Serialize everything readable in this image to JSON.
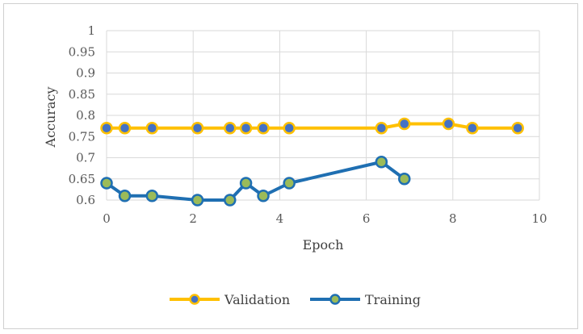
{
  "chart_data": {
    "type": "scatter",
    "xlabel": "Epoch",
    "ylabel": "Accuracy",
    "xlim": [
      0,
      10
    ],
    "ylim": [
      0.6,
      1
    ],
    "x_ticks": [
      0,
      2,
      4,
      6,
      8,
      10
    ],
    "x_tick_labels": [
      "0",
      "2",
      "4",
      "6",
      "8",
      "10"
    ],
    "y_ticks": [
      0.6,
      0.65,
      0.7,
      0.75,
      0.8,
      0.85,
      0.9,
      0.95,
      1
    ],
    "y_tick_labels": [
      "0.6",
      "0.65",
      "0.7",
      "0.75",
      "0.8",
      "0.85",
      "0.9",
      "0.95",
      "1"
    ],
    "grid": true,
    "legend_position": "bottom",
    "series": [
      {
        "name": "Validation",
        "color": "#FFC000",
        "marker_color": "#4472C4",
        "x": [
          0,
          0.42,
          1.05,
          2.1,
          2.85,
          3.22,
          3.62,
          4.22,
          6.35,
          6.88,
          7.9,
          8.45,
          9.5
        ],
        "y": [
          0.77,
          0.77,
          0.77,
          0.77,
          0.77,
          0.77,
          0.77,
          0.77,
          0.77,
          0.78,
          0.78,
          0.77,
          0.77
        ]
      },
      {
        "name": "Training",
        "color": "#1F6FB2",
        "marker_color": "#9BBB59",
        "x": [
          0,
          0.42,
          1.05,
          2.1,
          2.85,
          3.22,
          3.62,
          4.22,
          6.35,
          6.88
        ],
        "y": [
          0.64,
          0.61,
          0.61,
          0.6,
          0.6,
          0.64,
          0.61,
          0.64,
          0.69,
          0.65
        ]
      }
    ]
  }
}
